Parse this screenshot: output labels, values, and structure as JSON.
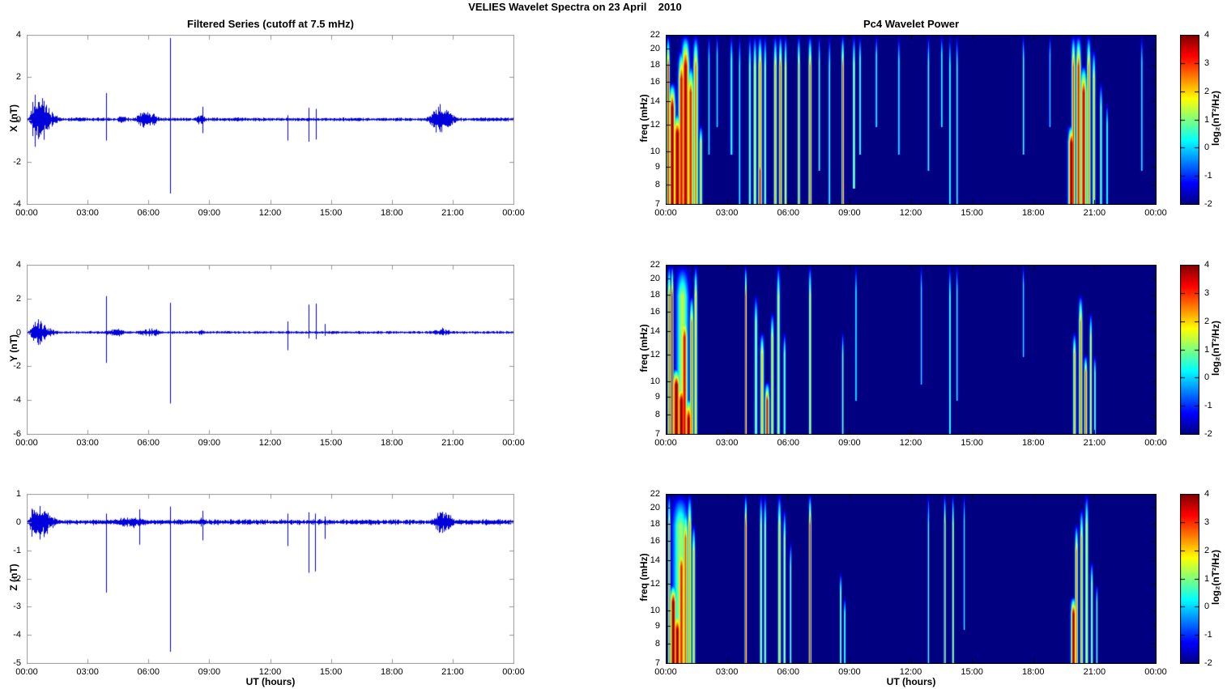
{
  "figure_title": "VELIES Wavelet Spectra on 23 April    2010",
  "left_column": {
    "title": "Filtered Series (cutoff at 7.5 mHz)",
    "xlabel": "UT (hours)"
  },
  "right_column": {
    "title": "Pc4 Wavelet Power",
    "xlabel": "UT (hours)",
    "ylabel": "freq (mHz)",
    "colorbar_label": "log₂(nT²/Hz)",
    "colorbar_ticks": [
      4,
      3,
      2,
      1,
      0,
      -1,
      -2
    ]
  },
  "time_axis": {
    "range_hours": [
      0,
      24
    ],
    "ticks_hours": [
      0,
      3,
      6,
      9,
      12,
      15,
      18,
      21,
      24
    ],
    "tick_labels": [
      "00:00",
      "03:00",
      "06:00",
      "09:00",
      "12:00",
      "15:00",
      "18:00",
      "21:00",
      "00:00"
    ]
  },
  "colors": {
    "series_line": "#0000DD",
    "panel_frame": "#999999",
    "heatmap_frame": "#000000",
    "background": "#FFFFFF",
    "colormap": "jet",
    "colormap_min_color": "#00007F",
    "colormap_max_color": "#7F0000"
  },
  "chart_data": [
    {
      "id": "ts-x",
      "type": "line",
      "component": "X",
      "ylabel": "X (nT)",
      "ylim": [
        -4,
        4
      ],
      "yticks": [
        4,
        2,
        0,
        -2,
        -4
      ],
      "xlim_hours": [
        0,
        24
      ],
      "noise": 0.07,
      "seed": 11,
      "bursts": [
        {
          "t0": 0.1,
          "t1": 1.8,
          "pk": 0.2,
          "amp": 1.5
        },
        {
          "t0": 2.0,
          "t1": 3.2,
          "pk": 0.5,
          "amp": 0.12
        },
        {
          "t0": 4.3,
          "t1": 5.1,
          "pk": 0.5,
          "amp": 0.22
        },
        {
          "t0": 5.2,
          "t1": 6.8,
          "pk": 0.45,
          "amp": 0.5
        },
        {
          "t0": 8.2,
          "t1": 9.0,
          "pk": 0.5,
          "amp": 0.32
        },
        {
          "t0": 9.0,
          "t1": 12.0,
          "pk": 0.5,
          "amp": 0.12
        },
        {
          "t0": 19.7,
          "t1": 21.5,
          "pk": 0.35,
          "amp": 0.8
        },
        {
          "t0": 21.5,
          "t1": 24.0,
          "pk": 0.5,
          "amp": 0.13
        }
      ],
      "spikes": [
        {
          "t": 3.9,
          "u": 1.25,
          "d": -1.0
        },
        {
          "t": 7.05,
          "u": 3.85,
          "d": -3.5
        },
        {
          "t": 8.65,
          "u": 0.6,
          "d": -0.65
        },
        {
          "t": 12.85,
          "u": 0.2,
          "d": -1.0
        },
        {
          "t": 13.9,
          "u": 0.55,
          "d": -1.05
        },
        {
          "t": 14.25,
          "u": 0.5,
          "d": -0.95
        }
      ]
    },
    {
      "id": "ts-y",
      "type": "line",
      "component": "Y",
      "ylabel": "Y (nT)",
      "ylim": [
        -6,
        4
      ],
      "yticks": [
        4,
        2,
        0,
        -2,
        -4,
        -6
      ],
      "xlim_hours": [
        0,
        24
      ],
      "noise": 0.07,
      "seed": 22,
      "bursts": [
        {
          "t0": 0.1,
          "t1": 1.7,
          "pk": 0.25,
          "amp": 0.95
        },
        {
          "t0": 3.6,
          "t1": 5.2,
          "pk": 0.5,
          "amp": 0.3
        },
        {
          "t0": 5.2,
          "t1": 7.0,
          "pk": 0.5,
          "amp": 0.28
        },
        {
          "t0": 8.3,
          "t1": 8.9,
          "pk": 0.5,
          "amp": 0.2
        },
        {
          "t0": 19.8,
          "t1": 21.3,
          "pk": 0.4,
          "amp": 0.3
        }
      ],
      "spikes": [
        {
          "t": 3.9,
          "u": 2.15,
          "d": -1.8
        },
        {
          "t": 7.05,
          "u": 1.75,
          "d": -4.2
        },
        {
          "t": 12.85,
          "u": 0.65,
          "d": -1.05
        },
        {
          "t": 13.9,
          "u": 1.65,
          "d": -0.35
        },
        {
          "t": 14.25,
          "u": 1.7,
          "d": -0.4
        },
        {
          "t": 14.7,
          "u": 0.5,
          "d": -0.2
        }
      ]
    },
    {
      "id": "ts-z",
      "type": "line",
      "component": "Z",
      "ylabel": "Z (nT)",
      "ylim": [
        -5,
        1
      ],
      "yticks": [
        1,
        0,
        -1,
        -2,
        -3,
        -4,
        -5
      ],
      "xlim_hours": [
        0,
        24
      ],
      "noise": 0.08,
      "seed": 33,
      "bursts": [
        {
          "t0": 0.08,
          "t1": 1.7,
          "pk": 0.2,
          "amp": 1.0
        },
        {
          "t0": 3.8,
          "t1": 6.6,
          "pk": 0.5,
          "amp": 0.22
        },
        {
          "t0": 8.3,
          "t1": 8.9,
          "pk": 0.5,
          "amp": 0.18
        },
        {
          "t0": 19.8,
          "t1": 21.5,
          "pk": 0.4,
          "amp": 0.5
        },
        {
          "t0": 21.5,
          "t1": 24.0,
          "pk": 0.5,
          "amp": 0.12
        }
      ],
      "spikes": [
        {
          "t": 3.9,
          "u": 0.3,
          "d": -2.5
        },
        {
          "t": 5.55,
          "u": 0.45,
          "d": -0.8
        },
        {
          "t": 7.05,
          "u": 0.55,
          "d": -4.6
        },
        {
          "t": 8.65,
          "u": 0.4,
          "d": -0.65
        },
        {
          "t": 12.85,
          "u": 0.3,
          "d": -0.85
        },
        {
          "t": 13.9,
          "u": 0.35,
          "d": -1.8
        },
        {
          "t": 14.2,
          "u": 0.3,
          "d": -1.75
        },
        {
          "t": 14.7,
          "u": 0.2,
          "d": -0.6
        }
      ]
    },
    {
      "id": "wav-x",
      "type": "heatmap",
      "component": "X",
      "flim": [
        7,
        22
      ],
      "fticks": [
        22,
        20,
        18,
        16,
        14,
        12,
        10,
        9,
        8,
        7
      ],
      "clim": [
        -2,
        4
      ],
      "freq_scale": "log",
      "events": [
        {
          "t": 0.1,
          "s": 0.05,
          "f1": 7,
          "f2": 22,
          "p": 3.2
        },
        {
          "t": 0.3,
          "s": 0.1,
          "f1": 7,
          "f2": 16,
          "p": 4
        },
        {
          "t": 0.55,
          "s": 0.12,
          "f1": 7,
          "f2": 13,
          "p": 4
        },
        {
          "t": 0.75,
          "s": 0.1,
          "f1": 7,
          "f2": 20,
          "p": 3.4
        },
        {
          "t": 0.95,
          "s": 0.12,
          "f1": 7,
          "f2": 22,
          "p": 3.8
        },
        {
          "t": 1.2,
          "s": 0.1,
          "f1": 7,
          "f2": 18,
          "p": 3.2
        },
        {
          "t": 1.45,
          "s": 0.08,
          "f1": 7,
          "f2": 22,
          "p": 2.6
        },
        {
          "t": 1.7,
          "s": 0.05,
          "f1": 7,
          "f2": 12,
          "p": 2.0
        },
        {
          "t": 2.1,
          "s": 0.03,
          "f1": 10,
          "f2": 22,
          "p": 0.6
        },
        {
          "t": 2.5,
          "s": 0.03,
          "f1": 12,
          "f2": 22,
          "p": 0.5
        },
        {
          "t": 3.2,
          "s": 0.04,
          "f1": 10,
          "f2": 22,
          "p": 0.8
        },
        {
          "t": 3.6,
          "s": 0.03,
          "f1": 7,
          "f2": 22,
          "p": 0.7
        },
        {
          "t": 4.1,
          "s": 0.04,
          "f1": 7,
          "f2": 22,
          "p": 1.2
        },
        {
          "t": 4.35,
          "s": 0.05,
          "f1": 7,
          "f2": 22,
          "p": 1.8
        },
        {
          "t": 4.6,
          "s": 0.06,
          "f1": 7,
          "f2": 22,
          "p": 2.6
        },
        {
          "t": 4.6,
          "s": 0.06,
          "f1": 7,
          "f2": 10,
          "p": 3.4
        },
        {
          "t": 4.85,
          "s": 0.04,
          "f1": 7,
          "f2": 22,
          "p": 1.4
        },
        {
          "t": 5.35,
          "s": 0.05,
          "f1": 7,
          "f2": 22,
          "p": 2.2
        },
        {
          "t": 5.6,
          "s": 0.05,
          "f1": 7,
          "f2": 22,
          "p": 2.8
        },
        {
          "t": 5.85,
          "s": 0.04,
          "f1": 7,
          "f2": 22,
          "p": 2.0
        },
        {
          "t": 6.5,
          "s": 0.04,
          "f1": 7,
          "f2": 22,
          "p": 2.4
        },
        {
          "t": 7.05,
          "s": 0.05,
          "f1": 7,
          "f2": 22,
          "p": 2.8
        },
        {
          "t": 7.5,
          "s": 0.03,
          "f1": 9,
          "f2": 22,
          "p": 1.0
        },
        {
          "t": 8.0,
          "s": 0.03,
          "f1": 7,
          "f2": 22,
          "p": 0.8
        },
        {
          "t": 8.65,
          "s": 0.04,
          "f1": 7,
          "f2": 22,
          "p": 3.0
        },
        {
          "t": 9.2,
          "s": 0.04,
          "f1": 8,
          "f2": 22,
          "p": 1.6
        },
        {
          "t": 9.5,
          "s": 0.03,
          "f1": 10,
          "f2": 22,
          "p": 1.0
        },
        {
          "t": 10.3,
          "s": 0.03,
          "f1": 12,
          "f2": 22,
          "p": 0.6
        },
        {
          "t": 11.4,
          "s": 0.03,
          "f1": 10,
          "f2": 22,
          "p": 0.5
        },
        {
          "t": 12.85,
          "s": 0.03,
          "f1": 9,
          "f2": 22,
          "p": 0.9
        },
        {
          "t": 13.5,
          "s": 0.03,
          "f1": 12,
          "f2": 22,
          "p": 0.7
        },
        {
          "t": 13.9,
          "s": 0.03,
          "f1": 7,
          "f2": 22,
          "p": 0.9
        },
        {
          "t": 14.25,
          "s": 0.03,
          "f1": 7,
          "f2": 22,
          "p": 0.8
        },
        {
          "t": 17.5,
          "s": 0.03,
          "f1": 10,
          "f2": 22,
          "p": 0.9
        },
        {
          "t": 18.8,
          "s": 0.02,
          "f1": 12,
          "f2": 22,
          "p": 0.4
        },
        {
          "t": 19.85,
          "s": 0.1,
          "f1": 7,
          "f2": 12,
          "p": 4
        },
        {
          "t": 19.95,
          "s": 0.06,
          "f1": 7,
          "f2": 22,
          "p": 3.0
        },
        {
          "t": 20.2,
          "s": 0.08,
          "f1": 7,
          "f2": 22,
          "p": 3.2
        },
        {
          "t": 20.45,
          "s": 0.1,
          "f1": 7,
          "f2": 18,
          "p": 3.6
        },
        {
          "t": 20.7,
          "s": 0.06,
          "f1": 7,
          "f2": 22,
          "p": 2.6
        },
        {
          "t": 20.95,
          "s": 0.05,
          "f1": 7,
          "f2": 20,
          "p": 2.0
        },
        {
          "t": 21.3,
          "s": 0.04,
          "f1": 7,
          "f2": 16,
          "p": 1.2
        },
        {
          "t": 21.6,
          "s": 0.03,
          "f1": 7,
          "f2": 14,
          "p": 0.8
        },
        {
          "t": 23.3,
          "s": 0.02,
          "f1": 9,
          "f2": 22,
          "p": 0.5
        }
      ]
    },
    {
      "id": "wav-y",
      "type": "heatmap",
      "component": "Y",
      "flim": [
        7,
        22
      ],
      "fticks": [
        22,
        20,
        18,
        16,
        14,
        12,
        10,
        9,
        8,
        7
      ],
      "clim": [
        -2,
        4
      ],
      "freq_scale": "log",
      "events": [
        {
          "t": 0.15,
          "s": 0.05,
          "f1": 7,
          "f2": 22,
          "p": 2.8
        },
        {
          "t": 0.3,
          "s": 0.04,
          "f1": 7,
          "f2": 22,
          "p": 3.4
        },
        {
          "t": 0.5,
          "s": 0.12,
          "f1": 7,
          "f2": 11,
          "p": 4
        },
        {
          "t": 0.75,
          "s": 0.12,
          "f1": 7,
          "f2": 10,
          "p": 4
        },
        {
          "t": 0.9,
          "s": 0.1,
          "f1": 7,
          "f2": 16,
          "p": 3.4
        },
        {
          "t": 1.1,
          "s": 0.1,
          "f1": 7,
          "f2": 9,
          "p": 4
        },
        {
          "t": 1.25,
          "s": 0.06,
          "f1": 7,
          "f2": 18,
          "p": 2.6
        },
        {
          "t": 1.45,
          "s": 0.05,
          "f1": 7,
          "f2": 22,
          "p": 2.2
        },
        {
          "t": 0.8,
          "s": 0.2,
          "f1": 7,
          "f2": 22,
          "p": 1.4
        },
        {
          "t": 3.9,
          "s": 0.03,
          "f1": 7,
          "f2": 22,
          "p": 3.2
        },
        {
          "t": 4.4,
          "s": 0.05,
          "f1": 7,
          "f2": 18,
          "p": 1.4
        },
        {
          "t": 4.7,
          "s": 0.06,
          "f1": 7,
          "f2": 14,
          "p": 2.2
        },
        {
          "t": 4.95,
          "s": 0.07,
          "f1": 7,
          "f2": 10,
          "p": 3.4
        },
        {
          "t": 5.2,
          "s": 0.05,
          "f1": 7,
          "f2": 16,
          "p": 2.0
        },
        {
          "t": 5.5,
          "s": 0.05,
          "f1": 7,
          "f2": 22,
          "p": 1.6
        },
        {
          "t": 5.8,
          "s": 0.04,
          "f1": 7,
          "f2": 14,
          "p": 1.2
        },
        {
          "t": 7.05,
          "s": 0.04,
          "f1": 7,
          "f2": 22,
          "p": 2.0
        },
        {
          "t": 8.65,
          "s": 0.03,
          "f1": 7,
          "f2": 14,
          "p": 1.2
        },
        {
          "t": 9.3,
          "s": 0.02,
          "f1": 9,
          "f2": 22,
          "p": 0.6
        },
        {
          "t": 12.5,
          "s": 0.02,
          "f1": 10,
          "f2": 22,
          "p": 0.5
        },
        {
          "t": 13.9,
          "s": 0.03,
          "f1": 7,
          "f2": 22,
          "p": 1.1
        },
        {
          "t": 14.25,
          "s": 0.02,
          "f1": 9,
          "f2": 22,
          "p": 0.6
        },
        {
          "t": 17.5,
          "s": 0.02,
          "f1": 12,
          "f2": 22,
          "p": 0.4
        },
        {
          "t": 20.0,
          "s": 0.05,
          "f1": 7,
          "f2": 14,
          "p": 2.2
        },
        {
          "t": 20.3,
          "s": 0.06,
          "f1": 7,
          "f2": 18,
          "p": 2.6
        },
        {
          "t": 20.55,
          "s": 0.05,
          "f1": 7,
          "f2": 12,
          "p": 2.8
        },
        {
          "t": 20.8,
          "s": 0.04,
          "f1": 7,
          "f2": 16,
          "p": 1.8
        },
        {
          "t": 21.0,
          "s": 0.03,
          "f1": 7,
          "f2": 12,
          "p": 1.2
        }
      ]
    },
    {
      "id": "wav-z",
      "type": "heatmap",
      "component": "Z",
      "flim": [
        7,
        22
      ],
      "fticks": [
        22,
        20,
        18,
        16,
        14,
        12,
        10,
        9,
        8,
        7
      ],
      "clim": [
        -2,
        4
      ],
      "freq_scale": "log",
      "events": [
        {
          "t": 0.15,
          "s": 0.04,
          "f1": 7,
          "f2": 22,
          "p": 2.6
        },
        {
          "t": 0.35,
          "s": 0.1,
          "f1": 7,
          "f2": 12,
          "p": 4
        },
        {
          "t": 0.55,
          "s": 0.1,
          "f1": 7,
          "f2": 10,
          "p": 4
        },
        {
          "t": 0.75,
          "s": 0.1,
          "f1": 7,
          "f2": 16,
          "p": 3.2
        },
        {
          "t": 0.95,
          "s": 0.08,
          "f1": 7,
          "f2": 20,
          "p": 2.8
        },
        {
          "t": 1.15,
          "s": 0.06,
          "f1": 7,
          "f2": 22,
          "p": 2.4
        },
        {
          "t": 1.35,
          "s": 0.05,
          "f1": 7,
          "f2": 18,
          "p": 2.0
        },
        {
          "t": 0.7,
          "s": 0.25,
          "f1": 7,
          "f2": 22,
          "p": 1.2
        },
        {
          "t": 3.9,
          "s": 0.035,
          "f1": 7,
          "f2": 22,
          "p": 3.2
        },
        {
          "t": 4.65,
          "s": 0.04,
          "f1": 7,
          "f2": 22,
          "p": 1.6
        },
        {
          "t": 4.85,
          "s": 0.04,
          "f1": 7,
          "f2": 22,
          "p": 1.4
        },
        {
          "t": 5.55,
          "s": 0.05,
          "f1": 7,
          "f2": 22,
          "p": 2.0
        },
        {
          "t": 5.8,
          "s": 0.04,
          "f1": 7,
          "f2": 20,
          "p": 1.6
        },
        {
          "t": 6.1,
          "s": 0.03,
          "f1": 7,
          "f2": 16,
          "p": 1.2
        },
        {
          "t": 7.05,
          "s": 0.04,
          "f1": 7,
          "f2": 22,
          "p": 3.4
        },
        {
          "t": 8.55,
          "s": 0.03,
          "f1": 7,
          "f2": 13,
          "p": 1.4
        },
        {
          "t": 8.75,
          "s": 0.03,
          "f1": 7,
          "f2": 11,
          "p": 1.0
        },
        {
          "t": 12.85,
          "s": 0.02,
          "f1": 7,
          "f2": 22,
          "p": 1.0
        },
        {
          "t": 13.65,
          "s": 0.03,
          "f1": 7,
          "f2": 22,
          "p": 2.4
        },
        {
          "t": 14.05,
          "s": 0.03,
          "f1": 7,
          "f2": 22,
          "p": 2.0
        },
        {
          "t": 14.6,
          "s": 0.02,
          "f1": 9,
          "f2": 22,
          "p": 0.7
        },
        {
          "t": 19.95,
          "s": 0.08,
          "f1": 7,
          "f2": 11,
          "p": 4
        },
        {
          "t": 20.1,
          "s": 0.05,
          "f1": 7,
          "f2": 18,
          "p": 2.6
        },
        {
          "t": 20.35,
          "s": 0.05,
          "f1": 7,
          "f2": 20,
          "p": 2.2
        },
        {
          "t": 20.6,
          "s": 0.05,
          "f1": 7,
          "f2": 22,
          "p": 1.8
        },
        {
          "t": 20.85,
          "s": 0.04,
          "f1": 7,
          "f2": 14,
          "p": 1.4
        },
        {
          "t": 21.1,
          "s": 0.03,
          "f1": 7,
          "f2": 12,
          "p": 1.0
        }
      ]
    }
  ]
}
